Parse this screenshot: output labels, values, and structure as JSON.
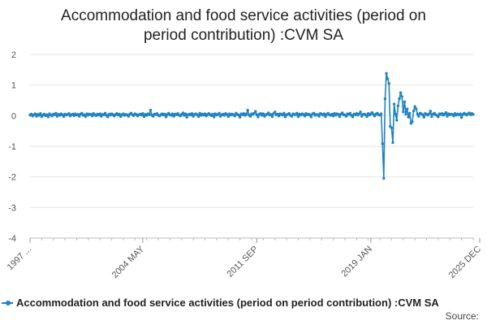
{
  "chart_data": {
    "type": "line",
    "title_line1": "Accommodation and food service activities (period on",
    "title_line2": "period contribution) :CVM SA",
    "xlabel": "",
    "ylabel": "",
    "ylim": [
      -4,
      2
    ],
    "y_ticks": [
      "2",
      "1",
      "0",
      "-1",
      "-2",
      "-3",
      "-4"
    ],
    "y_tick_values": [
      2,
      1,
      0,
      -1,
      -2,
      -3,
      -4
    ],
    "x_tick_labels": [
      "1997 ...",
      "2004 MAY",
      "2011 SEP",
      "2019 JAN",
      "2025 DEC"
    ],
    "x_tick_indices": [
      0,
      87,
      175,
      263,
      347
    ],
    "series": [
      {
        "name": "Accommodation and food service activities (period on period contribution) :CVM SA",
        "color": "#1f83c3",
        "values": [
          0.02,
          0.05,
          -0.01,
          0.03,
          0.06,
          -0.02,
          0.04,
          0.01,
          0.07,
          -0.03,
          0.02,
          0.05,
          0.0,
          0.03,
          -0.04,
          0.06,
          0.02,
          -0.01,
          0.05,
          0.03,
          0.08,
          -0.02,
          0.04,
          0.01,
          0.06,
          0.03,
          -0.03,
          0.05,
          0.02,
          0.04,
          0.07,
          -0.01,
          0.03,
          0.05,
          0.0,
          0.06,
          0.02,
          0.04,
          -0.02,
          0.05,
          0.08,
          0.01,
          0.03,
          -0.03,
          0.06,
          0.02,
          0.05,
          0.04,
          -0.01,
          0.07,
          0.03,
          0.0,
          0.05,
          0.02,
          0.06,
          -0.02,
          0.04,
          0.03,
          0.08,
          0.01,
          -0.04,
          0.05,
          0.02,
          0.06,
          0.03,
          -0.01,
          0.04,
          0.07,
          0.02,
          0.05,
          -0.03,
          0.03,
          0.06,
          0.01,
          0.04,
          0.02,
          -0.02,
          0.05,
          0.08,
          0.03,
          0.0,
          0.06,
          0.04,
          -0.01,
          0.03,
          0.05,
          0.02,
          0.07,
          -0.03,
          0.04,
          0.01,
          0.06,
          0.03,
          0.18,
          0.02,
          -0.02,
          0.05,
          0.04,
          0.07,
          0.01,
          -0.01,
          0.03,
          0.06,
          0.02,
          0.05,
          -0.04,
          0.04,
          0.08,
          0.03,
          0.01,
          0.06,
          -0.02,
          0.05,
          0.03,
          0.07,
          0.02,
          -0.01,
          0.04,
          0.09,
          0.01,
          0.06,
          -0.05,
          0.03,
          0.05,
          0.02,
          0.07,
          -0.02,
          0.04,
          0.06,
          0.03,
          -0.03,
          0.08,
          0.01,
          0.05,
          0.02,
          0.06,
          -0.01,
          0.04,
          0.07,
          0.03,
          0.0,
          0.05,
          -0.04,
          0.06,
          0.02,
          0.04,
          0.08,
          -0.02,
          0.03,
          0.05,
          0.01,
          0.07,
          0.04,
          -0.03,
          0.06,
          0.02,
          0.05,
          0.03,
          -0.01,
          0.08,
          0.04,
          0.02,
          -0.05,
          0.06,
          0.03,
          0.07,
          0.01,
          0.05,
          0.18,
          0.02,
          -0.02,
          0.06,
          0.04,
          0.08,
          0.14,
          0.03,
          -0.04,
          0.05,
          0.07,
          0.01,
          0.06,
          -0.02,
          0.03,
          0.05,
          0.09,
          0.02,
          0.04,
          -0.03,
          0.07,
          0.12,
          0.03,
          0.05,
          -0.01,
          0.06,
          0.04,
          0.02,
          0.08,
          -0.04,
          0.03,
          0.05,
          0.07,
          0.01,
          -0.02,
          0.06,
          0.04,
          0.03,
          0.08,
          -0.03,
          0.05,
          0.02,
          0.06,
          0.04,
          -0.01,
          0.07,
          0.03,
          0.05,
          0.02,
          -0.04,
          0.06,
          0.08,
          0.01,
          0.04,
          0.03,
          -0.02,
          0.07,
          0.05,
          0.02,
          0.06,
          -0.03,
          0.04,
          0.08,
          0.03,
          0.01,
          0.05,
          -0.01,
          0.07,
          0.02,
          0.06,
          0.04,
          -0.03,
          0.05,
          0.09,
          0.03,
          0.02,
          -0.02,
          0.06,
          0.04,
          0.08,
          0.01,
          -0.04,
          0.05,
          0.03,
          0.07,
          0.02,
          0.06,
          0.12,
          -0.02,
          0.04,
          0.05,
          0.03,
          -0.03,
          0.07,
          0.02,
          0.06,
          0.1,
          0.04,
          -0.01,
          0.05,
          0.08,
          0.03,
          0.02,
          0.06,
          -0.92,
          -2.05,
          0.55,
          1.38,
          1.2,
          1.05,
          -0.35,
          -0.4,
          -0.88,
          0.38,
          0.05,
          -0.15,
          0.32,
          0.55,
          0.75,
          0.62,
          0.12,
          0.45,
          0.05,
          0.22,
          -0.05,
          0.08,
          -0.25,
          -0.2,
          0.15,
          0.3,
          0.22,
          0.05,
          -0.02,
          0.08,
          0.06,
          0.03,
          -0.05,
          0.07,
          0.04,
          0.02,
          0.06,
          0.15,
          -0.03,
          0.05,
          0.08,
          0.03,
          0.01,
          -0.04,
          0.06,
          0.04,
          0.07,
          0.02,
          0.05,
          0.1,
          -0.02,
          0.06,
          0.03,
          0.05,
          0.04,
          -0.01,
          0.07,
          0.02,
          0.05,
          0.03,
          0.06,
          -0.06,
          0.04,
          0.08,
          0.05,
          0.02,
          0.06,
          0.09,
          0.03,
          0.07,
          0.04
        ]
      }
    ],
    "legend": "bottom-left",
    "grid": true
  },
  "footer": {
    "source": "Source:"
  }
}
